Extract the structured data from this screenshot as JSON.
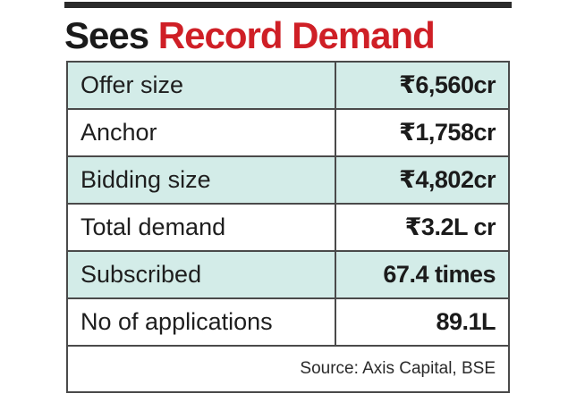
{
  "headline": {
    "part_black": "Sees",
    "part_red": "Record Demand"
  },
  "rows": [
    {
      "label": "Offer size",
      "value": "₹6,560cr"
    },
    {
      "label": "Anchor",
      "value": "₹1,758cr"
    },
    {
      "label": "Bidding size",
      "value": "₹4,802cr"
    },
    {
      "label": "Total demand",
      "value": "₹3.2L cr"
    },
    {
      "label": "Subscribed",
      "value": "67.4 times"
    },
    {
      "label": "No of applications",
      "value": "89.1L"
    }
  ],
  "source": "Source: Axis Capital, BSE",
  "colors": {
    "headline_red": "#cf1f26",
    "shaded_row": "#d3ece8",
    "border": "#4a4a4a"
  }
}
